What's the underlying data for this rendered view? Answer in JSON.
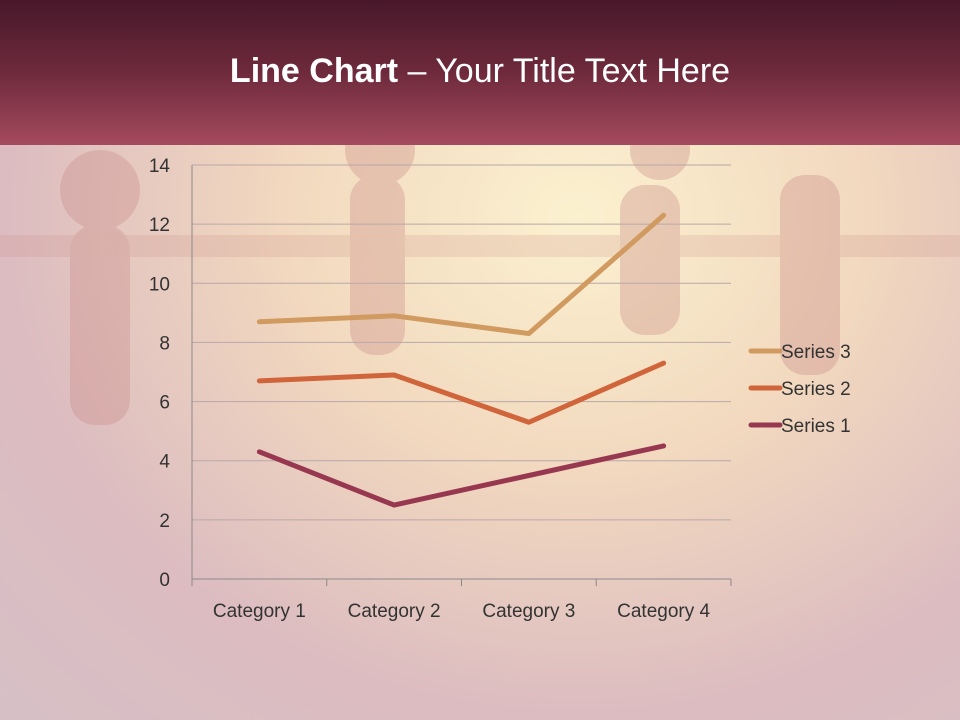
{
  "slide": {
    "title_bold": "Line Chart",
    "title_rest": " – Your Title Text Here"
  },
  "chart_data": {
    "type": "line",
    "stacked": true,
    "categories": [
      "Category 1",
      "Category 2",
      "Category 3",
      "Category 4"
    ],
    "series": [
      {
        "name": "Series 1",
        "values": [
          4.3,
          2.5,
          3.5,
          4.5
        ],
        "color": "#983850"
      },
      {
        "name": "Series 2",
        "values": [
          2.4,
          4.4,
          1.8,
          2.8
        ],
        "color": "#d0643a"
      },
      {
        "name": "Series 3",
        "values": [
          2,
          2,
          3,
          5
        ],
        "color": "#d09a60"
      }
    ],
    "ylim": [
      0,
      14
    ],
    "yticks": [
      "0",
      "2",
      "4",
      "6",
      "8",
      "10",
      "12",
      "14"
    ],
    "grid": true,
    "legend": "right"
  }
}
